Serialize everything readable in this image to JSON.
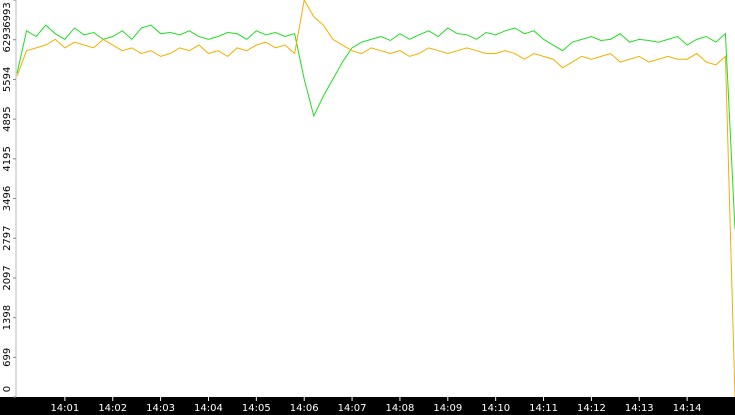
{
  "chart_data": {
    "type": "line",
    "x": [
      0,
      0.2,
      0.4,
      0.6,
      0.8,
      1,
      1.2,
      1.4,
      1.6,
      1.8,
      2,
      2.2,
      2.4,
      2.6,
      2.8,
      3,
      3.2,
      3.4,
      3.6,
      3.8,
      4,
      4.2,
      4.4,
      4.6,
      4.8,
      5,
      5.2,
      5.4,
      5.6,
      5.8,
      6,
      6.2,
      6.4,
      6.6,
      6.8,
      7,
      7.2,
      7.4,
      7.6,
      7.8,
      8,
      8.2,
      8.4,
      8.6,
      8.8,
      9,
      9.2,
      9.4,
      9.6,
      9.8,
      10,
      10.2,
      10.4,
      10.6,
      10.8,
      11,
      11.2,
      11.4,
      11.6,
      11.8,
      12,
      12.2,
      12.4,
      12.6,
      12.8,
      13,
      13.2,
      13.4,
      13.6,
      13.8,
      14,
      14.2,
      14.4,
      14.6,
      14.8,
      15
    ],
    "series": [
      {
        "color": "#22dd22",
        "values": [
          5700,
          6450,
          6350,
          6550,
          6400,
          6300,
          6500,
          6380,
          6420,
          6300,
          6350,
          6450,
          6300,
          6500,
          6550,
          6400,
          6420,
          6380,
          6450,
          6350,
          6300,
          6350,
          6420,
          6400,
          6300,
          6450,
          6380,
          6420,
          6350,
          6400,
          5600,
          4950,
          5300,
          5600,
          5900,
          6150,
          6250,
          6300,
          6350,
          6280,
          6400,
          6300,
          6380,
          6450,
          6350,
          6500,
          6400,
          6380,
          6300,
          6420,
          6380,
          6450,
          6500,
          6400,
          6450,
          6300,
          6200,
          6100,
          6250,
          6300,
          6350,
          6280,
          6300,
          6400,
          6250,
          6300,
          6280,
          6250,
          6300,
          6350,
          6200,
          6300,
          6350,
          6250,
          6400,
          2950
        ]
      },
      {
        "color": "#f0b000",
        "values": [
          5650,
          6100,
          6150,
          6200,
          6300,
          6150,
          6250,
          6200,
          6150,
          6300,
          6200,
          6100,
          6150,
          6050,
          6100,
          6000,
          6050,
          6150,
          6100,
          6200,
          6050,
          6100,
          6000,
          6150,
          6100,
          6200,
          6250,
          6150,
          6200,
          6050,
          6993,
          6700,
          6550,
          6300,
          6200,
          6100,
          6050,
          6150,
          6100,
          6050,
          6100,
          6000,
          6050,
          6150,
          6100,
          6050,
          6100,
          6150,
          6100,
          6050,
          6050,
          6100,
          6050,
          5950,
          6050,
          6000,
          5950,
          5800,
          5900,
          6000,
          5950,
          6000,
          6050,
          5900,
          5950,
          6000,
          5900,
          5950,
          6000,
          5950,
          5950,
          6050,
          5900,
          5850,
          6000,
          0
        ]
      }
    ],
    "xlim": [
      0,
      15
    ],
    "xticks": [
      {
        "value": 1,
        "label": "14:01"
      },
      {
        "value": 2,
        "label": "14:02"
      },
      {
        "value": 3,
        "label": "14:03"
      },
      {
        "value": 4,
        "label": "14:04"
      },
      {
        "value": 5,
        "label": "14:05"
      },
      {
        "value": 6,
        "label": "14:06"
      },
      {
        "value": 7,
        "label": "14:07"
      },
      {
        "value": 8,
        "label": "14:08"
      },
      {
        "value": 9,
        "label": "14:09"
      },
      {
        "value": 10,
        "label": "14:10"
      },
      {
        "value": 11,
        "label": "14:11"
      },
      {
        "value": 12,
        "label": "14:12"
      },
      {
        "value": 13,
        "label": "14:13"
      },
      {
        "value": 14,
        "label": "14:14"
      }
    ],
    "ylim": [
      0,
      6993
    ],
    "yticks": [
      0,
      699,
      1398,
      2097,
      2797,
      3496,
      4195,
      4895,
      5594,
      6293,
      6993
    ]
  }
}
